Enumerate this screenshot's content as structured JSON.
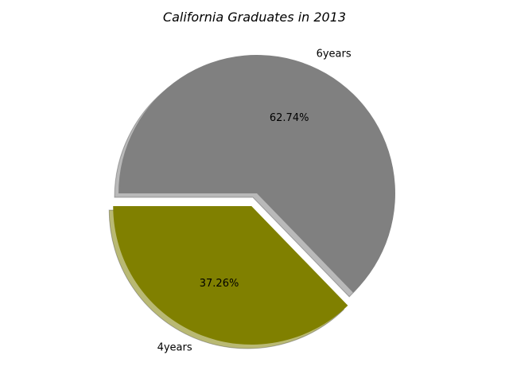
{
  "chart_data": {
    "type": "pie",
    "title": "California Graduates in 2013",
    "slices": [
      {
        "label": "6years",
        "value": 62.74,
        "value_label": "62.74%",
        "color": "#808080",
        "explode": false
      },
      {
        "label": "4years",
        "value": 37.26,
        "value_label": "37.26%",
        "color": "#808000",
        "explode": true
      }
    ],
    "shadow": true,
    "start_angle_deg": 180,
    "direction": "clockwise"
  }
}
